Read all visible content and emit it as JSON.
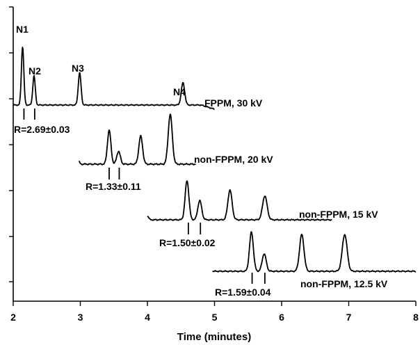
{
  "chart_data": {
    "type": "line",
    "title": "",
    "xlabel": "Time (minutes)",
    "ylabel": "",
    "xlim": [
      2,
      8
    ],
    "x_ticks": [
      "2",
      "3",
      "4",
      "5",
      "6",
      "7",
      "8"
    ],
    "grid": false,
    "legend": "none",
    "line_color": "#000000",
    "series": [
      {
        "name": "FPPM, 30 kV",
        "x_range": [
          2.0,
          5.0
        ],
        "peaks": [
          {
            "label": "N1",
            "x": 2.14,
            "height": 1.0
          },
          {
            "label": "N2",
            "x": 2.31,
            "height": 0.5
          },
          {
            "label": "N3",
            "x": 2.99,
            "height": 0.55
          },
          {
            "label": "N4",
            "x": 4.53,
            "height": 0.38
          }
        ],
        "resolution": "R=2.69±0.03",
        "resolution_pair_x": [
          2.16,
          2.32
        ]
      },
      {
        "name": "non-FPPM, 20 kV",
        "x_range": [
          2.98,
          4.72
        ],
        "peaks": [
          {
            "x": 3.43,
            "height": 0.58
          },
          {
            "x": 3.57,
            "height": 0.22
          },
          {
            "x": 3.9,
            "height": 0.48
          },
          {
            "x": 4.34,
            "height": 0.85
          }
        ],
        "resolution": "R=1.33±0.11",
        "resolution_pair_x": [
          3.43,
          3.58
        ]
      },
      {
        "name": "non-FPPM, 15 kV",
        "x_range": [
          4.0,
          6.75
        ],
        "peaks": [
          {
            "x": 4.59,
            "height": 0.67
          },
          {
            "x": 4.78,
            "height": 0.33
          },
          {
            "x": 5.23,
            "height": 0.51
          },
          {
            "x": 5.75,
            "height": 0.41
          }
        ],
        "resolution": "R=1.50±0.02",
        "resolution_pair_x": [
          4.61,
          4.79
        ]
      },
      {
        "name": "non-FPPM, 12.5 kV",
        "x_range": [
          4.97,
          8.0
        ],
        "peaks": [
          {
            "x": 5.55,
            "height": 0.67
          },
          {
            "x": 5.74,
            "height": 0.3
          },
          {
            "x": 6.3,
            "height": 0.63
          },
          {
            "x": 6.94,
            "height": 0.63
          }
        ],
        "resolution": "R=1.59±0.04",
        "resolution_pair_x": [
          5.56,
          5.75
        ]
      }
    ]
  }
}
